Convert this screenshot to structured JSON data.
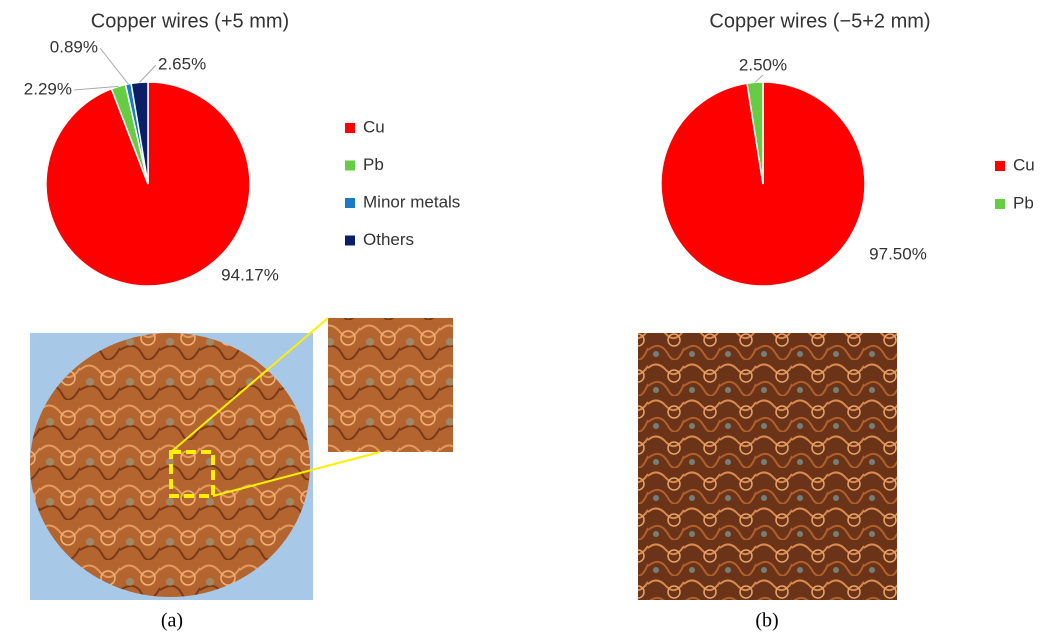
{
  "chart_data": [
    {
      "type": "pie",
      "title": "Copper wires (+5 mm)",
      "categories": [
        "Cu",
        "Pb",
        "Minor metals",
        "Others"
      ],
      "values": [
        94.17,
        2.29,
        0.89,
        2.65
      ],
      "value_labels": [
        "94.17%",
        "2.29%",
        "0.89%",
        "2.65%"
      ],
      "colors": [
        "#ff0000",
        "#66cc44",
        "#1a7ac8",
        "#0b1f66"
      ]
    },
    {
      "type": "pie",
      "title": "Copper wires (−5+2 mm)",
      "categories": [
        "Cu",
        "Pb"
      ],
      "values": [
        97.5,
        2.5
      ],
      "value_labels": [
        "97.50%",
        "2.50%"
      ],
      "colors": [
        "#ff0000",
        "#66cc44"
      ]
    }
  ],
  "panels": [
    "(a)",
    "(b)"
  ]
}
